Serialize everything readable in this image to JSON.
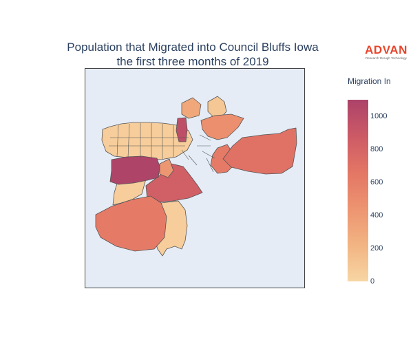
{
  "title": {
    "line1": "Population that Migrated into Council Bluffs Iowa",
    "line2": "the first three months of 2019"
  },
  "logo": {
    "name": "ADVAN",
    "tagline": "Research through Technology"
  },
  "colorbar": {
    "title": "Migration In",
    "min": 0,
    "max": 1100,
    "ticks": [
      "0",
      "200",
      "400",
      "600",
      "800",
      "1000"
    ],
    "colors": [
      "#f7d6a4",
      "#f2b482",
      "#ed9470",
      "#e37665",
      "#cc5a66",
      "#ac4269"
    ]
  },
  "map": {
    "background": "#e5ecf6",
    "border_color": "#555555",
    "regions": [
      {
        "id": "sw-large",
        "value": 620
      },
      {
        "id": "south-central",
        "value": 60
      },
      {
        "id": "west-light",
        "value": 60
      },
      {
        "id": "west-dark",
        "value": 1080
      },
      {
        "id": "center-dark",
        "value": 840
      },
      {
        "id": "east-large",
        "value": 700
      },
      {
        "id": "east-mid",
        "value": 620
      },
      {
        "id": "north-dark",
        "value": 980
      },
      {
        "id": "north-mid",
        "value": 480
      },
      {
        "id": "ne-light",
        "value": 100
      },
      {
        "id": "central-med",
        "value": 420
      },
      {
        "id": "ne-mid",
        "value": 300
      },
      {
        "id": "west-grid",
        "value": 60
      }
    ]
  }
}
